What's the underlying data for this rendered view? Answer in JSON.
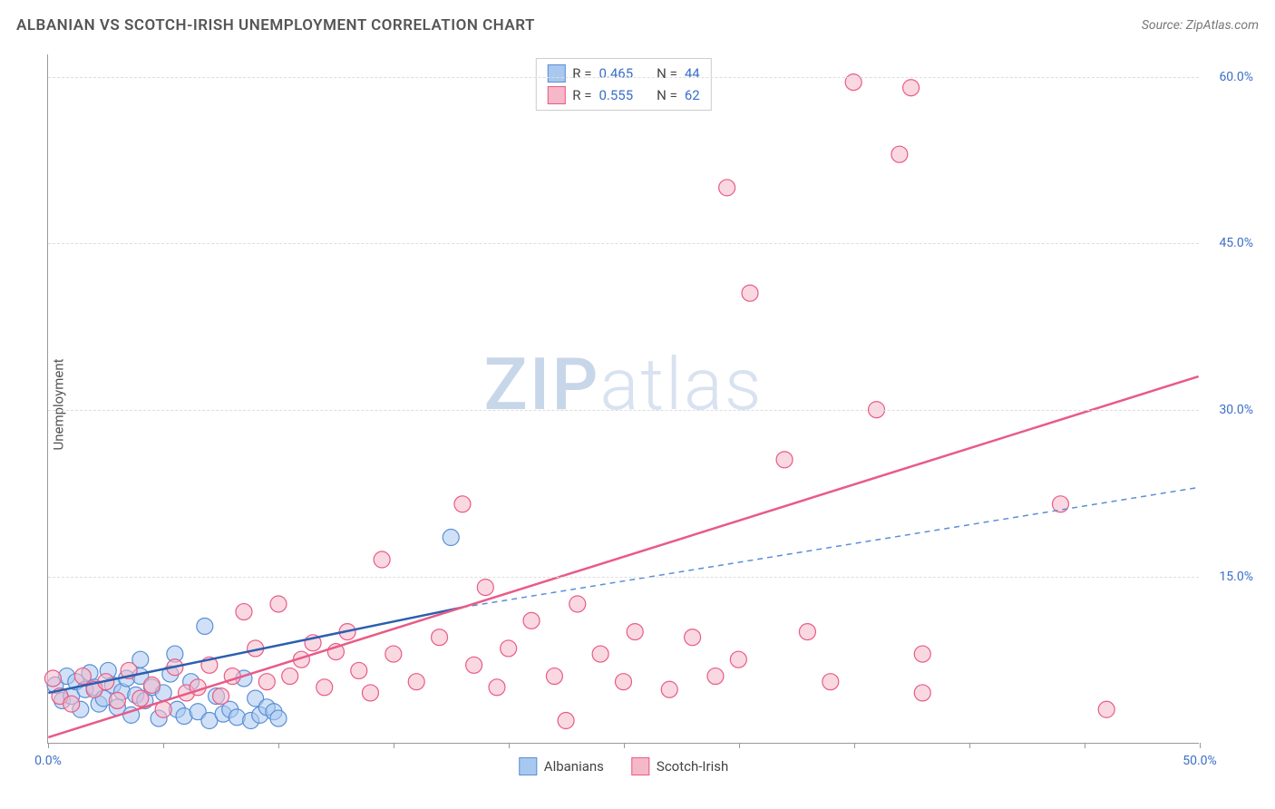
{
  "title": "ALBANIAN VS SCOTCH-IRISH UNEMPLOYMENT CORRELATION CHART",
  "source": "Source: ZipAtlas.com",
  "ylabel": "Unemployment",
  "watermark_a": "ZIP",
  "watermark_b": "atlas",
  "chart": {
    "type": "scatter",
    "xlim": [
      0,
      50
    ],
    "ylim": [
      0,
      62
    ],
    "x_ticks": [
      0,
      5,
      10,
      15,
      20,
      25,
      30,
      35,
      40,
      45,
      50
    ],
    "x_tick_labels": {
      "0": "0.0%",
      "50": "50.0%"
    },
    "y_ticks": [
      15,
      30,
      45,
      60
    ],
    "y_tick_labels": {
      "15": "15.0%",
      "30": "30.0%",
      "45": "45.0%",
      "60": "60.0%"
    },
    "background_color": "#ffffff",
    "grid_color": "#dddddd",
    "marker_radius": 9,
    "series": [
      {
        "name": "Albanians",
        "fill_color": "#a9c8f0",
        "stroke_color": "#5a8fd6",
        "fill_opacity": 0.55,
        "R": "0.465",
        "N": "44",
        "trend": {
          "solid": {
            "x1": 0,
            "y1": 4.5,
            "x2": 18,
            "y2": 12.2,
            "color": "#2b5fb0",
            "width": 2.5
          },
          "dashed": {
            "x1": 18,
            "y1": 12.2,
            "x2": 50,
            "y2": 23.0,
            "color": "#5a8fd6",
            "width": 1.5
          }
        },
        "points": [
          [
            0.3,
            5.2
          ],
          [
            0.6,
            3.8
          ],
          [
            0.8,
            6.0
          ],
          [
            1.0,
            4.2
          ],
          [
            1.2,
            5.5
          ],
          [
            1.4,
            3.0
          ],
          [
            1.6,
            4.8
          ],
          [
            1.8,
            6.3
          ],
          [
            2.0,
            5.0
          ],
          [
            2.2,
            3.5
          ],
          [
            2.4,
            4.0
          ],
          [
            2.6,
            6.5
          ],
          [
            2.8,
            5.2
          ],
          [
            3.0,
            3.2
          ],
          [
            3.2,
            4.6
          ],
          [
            3.4,
            5.8
          ],
          [
            3.6,
            2.5
          ],
          [
            3.8,
            4.3
          ],
          [
            4.0,
            6.0
          ],
          [
            4.2,
            3.8
          ],
          [
            4.5,
            5.0
          ],
          [
            4.8,
            2.2
          ],
          [
            5.0,
            4.5
          ],
          [
            5.3,
            6.2
          ],
          [
            5.6,
            3.0
          ],
          [
            5.9,
            2.4
          ],
          [
            6.2,
            5.5
          ],
          [
            6.5,
            2.8
          ],
          [
            6.8,
            10.5
          ],
          [
            7.0,
            2.0
          ],
          [
            7.3,
            4.2
          ],
          [
            7.6,
            2.6
          ],
          [
            7.9,
            3.0
          ],
          [
            8.2,
            2.3
          ],
          [
            8.5,
            5.8
          ],
          [
            8.8,
            2.0
          ],
          [
            9.0,
            4.0
          ],
          [
            9.2,
            2.5
          ],
          [
            9.5,
            3.2
          ],
          [
            9.8,
            2.8
          ],
          [
            10.0,
            2.2
          ],
          [
            4.0,
            7.5
          ],
          [
            5.5,
            8.0
          ],
          [
            17.5,
            18.5
          ]
        ]
      },
      {
        "name": "Scotch-Irish",
        "fill_color": "#f5b8c9",
        "stroke_color": "#e85b87",
        "fill_opacity": 0.55,
        "R": "0.555",
        "N": "62",
        "trend": {
          "solid": {
            "x1": 0,
            "y1": 0.5,
            "x2": 50,
            "y2": 33.0,
            "color": "#e85b87",
            "width": 2.5
          }
        },
        "points": [
          [
            0.2,
            5.8
          ],
          [
            0.5,
            4.2
          ],
          [
            1.0,
            3.5
          ],
          [
            1.5,
            6.0
          ],
          [
            2.0,
            4.8
          ],
          [
            2.5,
            5.5
          ],
          [
            3.0,
            3.8
          ],
          [
            3.5,
            6.5
          ],
          [
            4.0,
            4.0
          ],
          [
            4.5,
            5.2
          ],
          [
            5.0,
            3.0
          ],
          [
            5.5,
            6.8
          ],
          [
            6.0,
            4.5
          ],
          [
            6.5,
            5.0
          ],
          [
            7.0,
            7.0
          ],
          [
            7.5,
            4.2
          ],
          [
            8.0,
            6.0
          ],
          [
            8.5,
            11.8
          ],
          [
            9.0,
            8.5
          ],
          [
            9.5,
            5.5
          ],
          [
            10.0,
            12.5
          ],
          [
            10.5,
            6.0
          ],
          [
            11.0,
            7.5
          ],
          [
            11.5,
            9.0
          ],
          [
            12.0,
            5.0
          ],
          [
            12.5,
            8.2
          ],
          [
            13.0,
            10.0
          ],
          [
            13.5,
            6.5
          ],
          [
            14.0,
            4.5
          ],
          [
            14.5,
            16.5
          ],
          [
            15.0,
            8.0
          ],
          [
            16.0,
            5.5
          ],
          [
            17.0,
            9.5
          ],
          [
            18.0,
            21.5
          ],
          [
            18.5,
            7.0
          ],
          [
            19.0,
            14.0
          ],
          [
            19.5,
            5.0
          ],
          [
            20.0,
            8.5
          ],
          [
            21.0,
            11.0
          ],
          [
            22.0,
            6.0
          ],
          [
            22.5,
            2.0
          ],
          [
            23.0,
            12.5
          ],
          [
            24.0,
            8.0
          ],
          [
            25.0,
            5.5
          ],
          [
            25.5,
            10.0
          ],
          [
            27.0,
            4.8
          ],
          [
            28.0,
            9.5
          ],
          [
            29.0,
            6.0
          ],
          [
            29.5,
            50.0
          ],
          [
            30.0,
            7.5
          ],
          [
            30.5,
            40.5
          ],
          [
            32.0,
            25.5
          ],
          [
            33.0,
            10.0
          ],
          [
            34.0,
            5.5
          ],
          [
            35.0,
            59.5
          ],
          [
            36.0,
            30.0
          ],
          [
            37.0,
            53.0
          ],
          [
            37.5,
            59.0
          ],
          [
            38.0,
            4.5
          ],
          [
            44.0,
            21.5
          ],
          [
            46.0,
            3.0
          ],
          [
            38.0,
            8.0
          ]
        ]
      }
    ]
  },
  "legend_top": [
    {
      "swatch_fill": "#a9c8f0",
      "swatch_stroke": "#5a8fd6",
      "r": "0.465",
      "n": "44"
    },
    {
      "swatch_fill": "#f5b8c9",
      "swatch_stroke": "#e85b87",
      "r": "0.555",
      "n": "62"
    }
  ],
  "legend_bottom": [
    {
      "swatch_fill": "#a9c8f0",
      "swatch_stroke": "#5a8fd6",
      "label": "Albanians"
    },
    {
      "swatch_fill": "#f5b8c9",
      "swatch_stroke": "#e85b87",
      "label": "Scotch-Irish"
    }
  ],
  "labels": {
    "R_prefix": "R =",
    "N_prefix": "N ="
  }
}
